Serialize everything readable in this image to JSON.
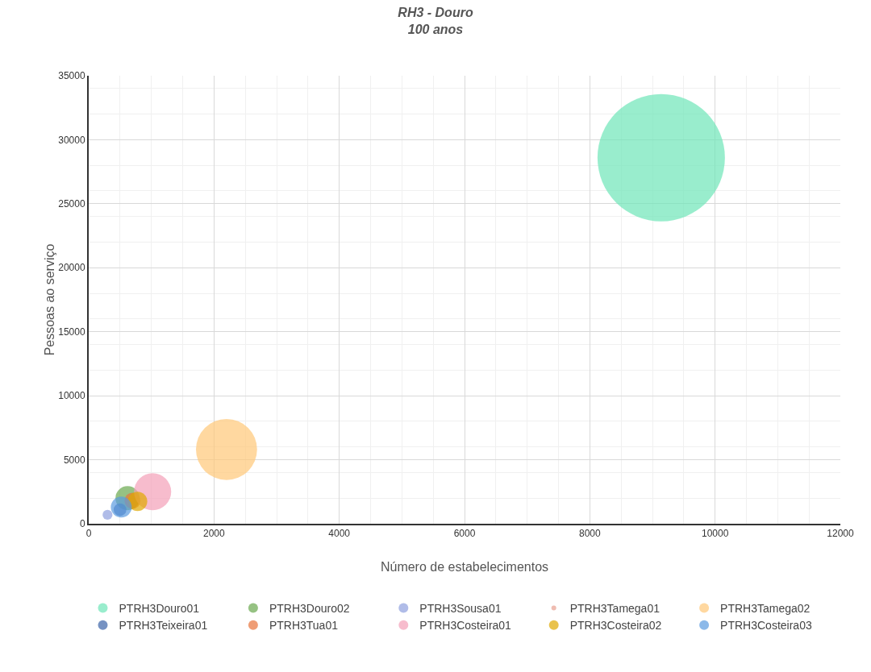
{
  "chart_data": {
    "type": "bubble",
    "title": "RH3 - Douro\n100 anos",
    "xlabel": "Número de estabelecimentos",
    "ylabel": "Pessoas ao serviço",
    "xlim": [
      0,
      12000
    ],
    "xticks": [
      0,
      2000,
      4000,
      6000,
      8000,
      10000,
      12000
    ],
    "ylim": [
      0,
      35000
    ],
    "yticks": [
      0,
      5000,
      10000,
      15000,
      20000,
      25000,
      30000,
      35000
    ],
    "grid": true,
    "legend": "bottom",
    "series": [
      {
        "name": "PTRH3Douro01",
        "color": "#6ee6b8",
        "x": [
          9140
        ],
        "values": [
          28600
        ],
        "sizes": [
          1
        ]
      },
      {
        "name": "PTRH3Douro02",
        "color": "#6aa84f",
        "x": [
          620
        ],
        "values": [
          2000
        ],
        "sizes": [
          0.036
        ]
      },
      {
        "name": "PTRH3Sousa01",
        "color": "#8e9fde",
        "x": [
          300
        ],
        "values": [
          700
        ],
        "sizes": [
          0.006
        ]
      },
      {
        "name": "PTRH3Tamega01",
        "color": "#e8a090",
        "x": [
          null
        ],
        "values": [
          null
        ],
        "sizes": [
          null
        ]
      },
      {
        "name": "PTRH3Tamega02",
        "color": "#ffc878",
        "x": [
          2200
        ],
        "values": [
          5800
        ],
        "sizes": [
          0.23
        ]
      },
      {
        "name": "PTRH3Teixeira01",
        "color": "#3c64a8",
        "x": [
          500
        ],
        "values": [
          1100
        ],
        "sizes": [
          0.01
        ]
      },
      {
        "name": "PTRH3Tua01",
        "color": "#e8743b",
        "x": [
          700
        ],
        "values": [
          1800
        ],
        "sizes": [
          0.016
        ]
      },
      {
        "name": "PTRH3Costeira01",
        "color": "#f4a0b8",
        "x": [
          1020
        ],
        "values": [
          2500
        ],
        "sizes": [
          0.085
        ]
      },
      {
        "name": "PTRH3Costeira02",
        "color": "#e0a800",
        "x": [
          780
        ],
        "values": [
          1750
        ],
        "sizes": [
          0.023
        ]
      },
      {
        "name": "PTRH3Costeira03",
        "color": "#5b9be0",
        "x": [
          520
        ],
        "values": [
          1300
        ],
        "sizes": [
          0.027
        ]
      }
    ]
  }
}
